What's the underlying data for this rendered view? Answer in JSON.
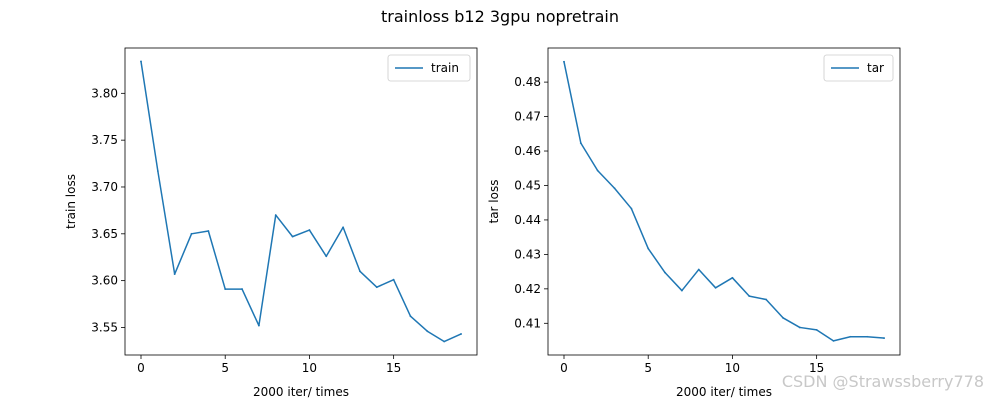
{
  "figure": {
    "title": "trainloss b12 3gpu nopretrain",
    "watermark": "CSDN @Strawssberry778",
    "line_color": "#1f77b4"
  },
  "chart_data": [
    {
      "type": "line",
      "x": [
        0,
        1,
        2,
        3,
        4,
        5,
        6,
        7,
        8,
        9,
        10,
        11,
        12,
        13,
        14,
        15,
        16,
        17,
        18,
        19
      ],
      "series": [
        {
          "name": "train",
          "values": [
            3.834,
            3.717,
            3.607,
            3.65,
            3.653,
            3.591,
            3.591,
            3.552,
            3.67,
            3.647,
            3.654,
            3.626,
            3.657,
            3.61,
            3.593,
            3.601,
            3.562,
            3.546,
            3.535,
            3.543
          ],
          "color": "#1f77b4"
        }
      ],
      "xlabel": "2000 iter/ times",
      "ylabel": "train loss",
      "xlim": [
        -0.95,
        19.95
      ],
      "ylim": [
        3.5206,
        3.8484
      ],
      "xticks": [
        0,
        5,
        10,
        15
      ],
      "xtick_labels": [
        "0",
        "5",
        "10",
        "15"
      ],
      "yticks": [
        3.55,
        3.6,
        3.65,
        3.7,
        3.75,
        3.8
      ],
      "ytick_labels": [
        "3.55",
        "3.60",
        "3.65",
        "3.70",
        "3.75",
        "3.80"
      ],
      "legend": "top-right",
      "grid": false
    },
    {
      "type": "line",
      "x": [
        0,
        1,
        2,
        3,
        4,
        5,
        6,
        7,
        8,
        9,
        10,
        11,
        12,
        13,
        14,
        15,
        16,
        17,
        18,
        19
      ],
      "series": [
        {
          "name": "tar",
          "values": [
            0.4859,
            0.4623,
            0.4543,
            0.4492,
            0.4433,
            0.4317,
            0.4247,
            0.4195,
            0.4256,
            0.4203,
            0.4232,
            0.4179,
            0.4169,
            0.4116,
            0.4088,
            0.4081,
            0.4049,
            0.4061,
            0.4061,
            0.4057
          ],
          "color": "#1f77b4"
        }
      ],
      "xlabel": "2000 iter/ times",
      "ylabel": "tar loss",
      "xlim": [
        -0.95,
        19.95
      ],
      "ylim": [
        0.4008,
        0.4899
      ],
      "xticks": [
        0,
        5,
        10,
        15
      ],
      "xtick_labels": [
        "0",
        "5",
        "10",
        "15"
      ],
      "yticks": [
        0.41,
        0.42,
        0.43,
        0.44,
        0.45,
        0.46,
        0.47,
        0.48
      ],
      "ytick_labels": [
        "0.41",
        "0.42",
        "0.43",
        "0.44",
        "0.45",
        "0.46",
        "0.47",
        "0.48"
      ],
      "legend": "top-right",
      "grid": false
    }
  ]
}
